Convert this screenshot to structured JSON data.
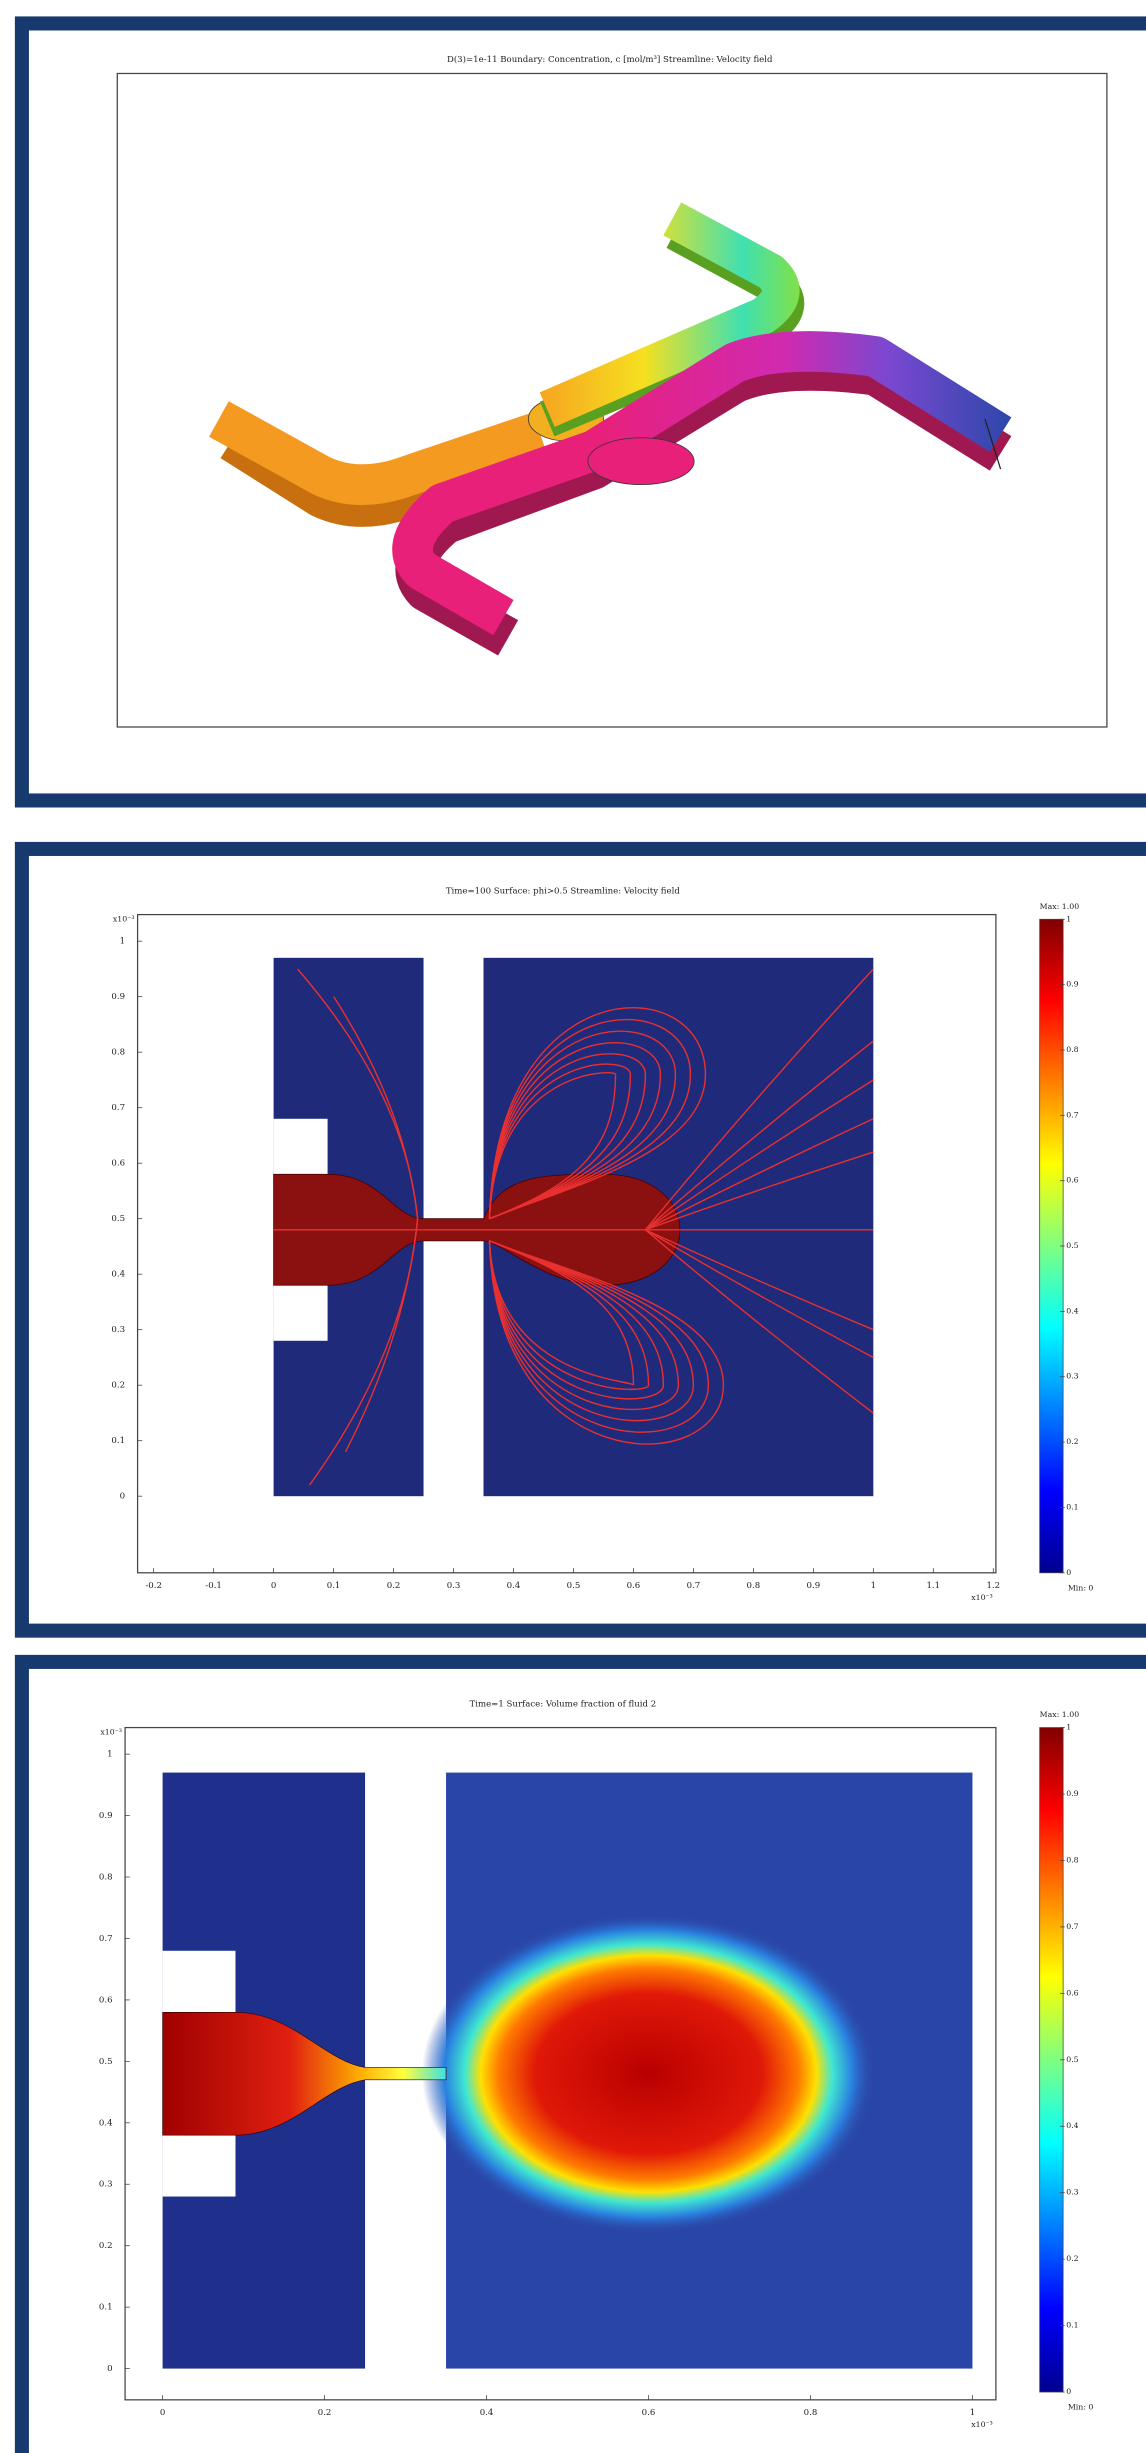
{
  "panels": [
    {
      "title": "D(3)=1e-11   Boundary: Concentration, c [mol/m³]   Streamline: Velocity field"
    },
    {
      "title": "Time=100   Surface: phi>0.5   Streamline: Velocity field",
      "x_ticks": [
        "-0.2",
        "-0.1",
        "0",
        "0.1",
        "0.2",
        "0.3",
        "0.4",
        "0.5",
        "0.6",
        "0.7",
        "0.8",
        "0.9",
        "1",
        "1.1",
        "1.2"
      ],
      "y_ticks": [
        "0",
        "0.1",
        "0.2",
        "0.3",
        "0.4",
        "0.5",
        "0.6",
        "0.7",
        "0.8",
        "0.9",
        "1"
      ],
      "x_exponent": "x10⁻³",
      "y_exponent": "x10⁻³",
      "colorbar": {
        "max_label": "Max: 1.00",
        "min_label": "Min: 0",
        "ticks": [
          "0",
          "0.1",
          "0.2",
          "0.3",
          "0.4",
          "0.5",
          "0.6",
          "0.7",
          "0.8",
          "0.9",
          "1"
        ]
      }
    },
    {
      "title": "Time=1   Surface: Volume fraction of fluid 2",
      "x_ticks": [
        "0",
        "0.2",
        "0.4",
        "0.6",
        "0.8",
        "1"
      ],
      "y_ticks": [
        "0",
        "0.1",
        "0.2",
        "0.3",
        "0.4",
        "0.5",
        "0.6",
        "0.7",
        "0.8",
        "0.9",
        "1"
      ],
      "x_exponent": "x10⁻³",
      "y_exponent": "x10⁻³",
      "colorbar": {
        "max_label": "Max: 1.00",
        "min_label": "Min: 0",
        "ticks": [
          "0",
          "0.1",
          "0.2",
          "0.3",
          "0.4",
          "0.5",
          "0.6",
          "0.7",
          "0.8",
          "0.9",
          "1"
        ]
      }
    }
  ]
}
